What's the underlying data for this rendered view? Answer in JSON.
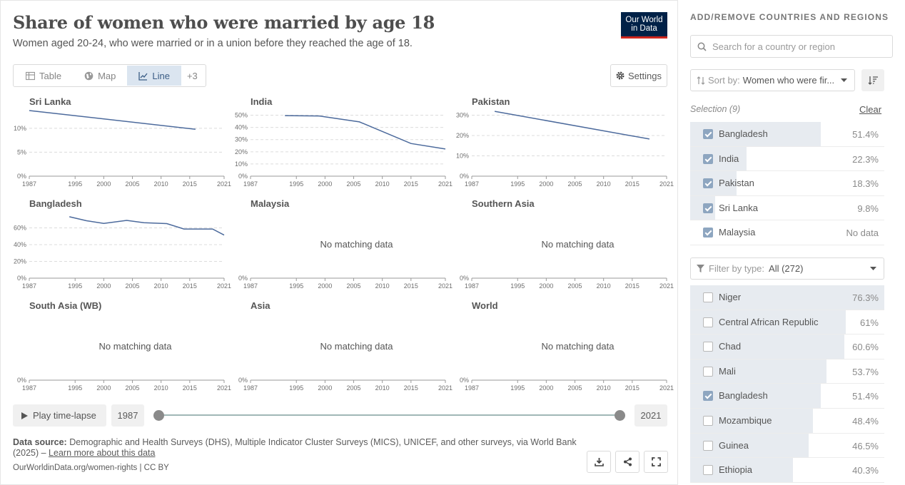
{
  "header": {
    "title": "Share of women who were married by age 18",
    "subtitle": "Women aged 20-24, who were married or in a union before they reached the age of 18.",
    "logo_line1": "Our World",
    "logo_line2": "in Data"
  },
  "tabs": [
    {
      "label": "Table",
      "icon": "table-icon"
    },
    {
      "label": "Map",
      "icon": "globe-icon"
    },
    {
      "label": "Line",
      "icon": "line-chart-icon",
      "active": true
    },
    {
      "label": "+3"
    }
  ],
  "settings_label": "Settings",
  "no_data_text": "No matching data",
  "chart_data": {
    "type": "line",
    "x_ticks": [
      "1987",
      "1995",
      "2000",
      "2005",
      "2010",
      "2015",
      "2021"
    ],
    "xlim": [
      1987,
      2021
    ],
    "line_color": "#4c6a9c",
    "facets": [
      {
        "name": "Sri Lanka",
        "ylim": [
          0,
          14
        ],
        "y_ticks": [
          0,
          5,
          10
        ],
        "y_suffix": "%",
        "points": [
          [
            1987,
            13.7
          ],
          [
            2016,
            9.8
          ]
        ]
      },
      {
        "name": "India",
        "ylim": [
          0,
          55
        ],
        "y_ticks": [
          0,
          10,
          20,
          30,
          40,
          50
        ],
        "y_suffix": "%",
        "points": [
          [
            1993,
            49.7
          ],
          [
            1999,
            49.4
          ],
          [
            2006,
            44.5
          ],
          [
            2015,
            26.8
          ],
          [
            2021,
            22.3
          ]
        ]
      },
      {
        "name": "Pakistan",
        "ylim": [
          0,
          33
        ],
        "y_ticks": [
          0,
          10,
          20,
          30
        ],
        "y_suffix": "%",
        "points": [
          [
            1991,
            31.9
          ],
          [
            2018,
            18.3
          ]
        ]
      },
      {
        "name": "Bangladesh",
        "ylim": [
          0,
          80
        ],
        "y_ticks": [
          0,
          20,
          40,
          60
        ],
        "y_suffix": "%",
        "points": [
          [
            1994,
            73.3
          ],
          [
            1997,
            68.5
          ],
          [
            2000,
            65.4
          ],
          [
            2004,
            68.9
          ],
          [
            2007,
            66.1
          ],
          [
            2011,
            65.1
          ],
          [
            2014,
            58.6
          ],
          [
            2019,
            58.6
          ],
          [
            2021,
            51.4
          ]
        ]
      },
      {
        "name": "Malaysia",
        "ylim": [
          0,
          1
        ],
        "y_ticks": [
          0
        ],
        "y_suffix": "%",
        "points": []
      },
      {
        "name": "Southern Asia",
        "ylim": [
          0,
          1
        ],
        "y_ticks": [
          0
        ],
        "y_suffix": "%",
        "points": []
      },
      {
        "name": "South Asia (WB)",
        "ylim": [
          0,
          1
        ],
        "y_ticks": [
          0
        ],
        "y_suffix": "%",
        "points": []
      },
      {
        "name": "Asia",
        "ylim": [
          0,
          1
        ],
        "y_ticks": [
          0
        ],
        "y_suffix": "%",
        "points": []
      },
      {
        "name": "World",
        "ylim": [
          0,
          1
        ],
        "y_ticks": [
          0
        ],
        "y_suffix": "%",
        "points": []
      }
    ]
  },
  "timeline": {
    "play_label": "Play time-lapse",
    "start_year": "1987",
    "end_year": "2021"
  },
  "footer": {
    "source_label": "Data source:",
    "source_text": "Demographic and Health Surveys (DHS), Multiple Indicator Cluster Surveys (MICS), UNICEF, and other surveys, via World Bank (2025) –",
    "learn_more": "Learn more about this data",
    "url": "OurWorldinData.org/women-rights | CC BY"
  },
  "side": {
    "heading": "ADD/REMOVE COUNTRIES AND REGIONS",
    "search_placeholder": "Search for a country or region",
    "sort_prefix": "Sort by:",
    "sort_value": "Women who were fir...",
    "selection_label": "Selection (9)",
    "clear_label": "Clear",
    "filter_prefix": "Filter by type:",
    "filter_value": "All (272)",
    "selected": [
      {
        "name": "Bangladesh",
        "value": "51.4%",
        "fraction": 0.674,
        "checked": true
      },
      {
        "name": "India",
        "value": "22.3%",
        "fraction": 0.292,
        "checked": true
      },
      {
        "name": "Pakistan",
        "value": "18.3%",
        "fraction": 0.24,
        "checked": true
      },
      {
        "name": "Sri Lanka",
        "value": "9.8%",
        "fraction": 0.128,
        "checked": true
      },
      {
        "name": "Malaysia",
        "value": "No data",
        "fraction": 0,
        "checked": true
      }
    ],
    "all": [
      {
        "name": "Niger",
        "value": "76.3%",
        "fraction": 1.0,
        "checked": false
      },
      {
        "name": "Central African Republic",
        "value": "61%",
        "fraction": 0.8,
        "checked": false
      },
      {
        "name": "Chad",
        "value": "60.6%",
        "fraction": 0.794,
        "checked": false
      },
      {
        "name": "Mali",
        "value": "53.7%",
        "fraction": 0.704,
        "checked": false
      },
      {
        "name": "Bangladesh",
        "value": "51.4%",
        "fraction": 0.674,
        "checked": true
      },
      {
        "name": "Mozambique",
        "value": "48.4%",
        "fraction": 0.634,
        "checked": false
      },
      {
        "name": "Guinea",
        "value": "46.5%",
        "fraction": 0.609,
        "checked": false
      },
      {
        "name": "Ethiopia",
        "value": "40.3%",
        "fraction": 0.528,
        "checked": false
      }
    ]
  }
}
